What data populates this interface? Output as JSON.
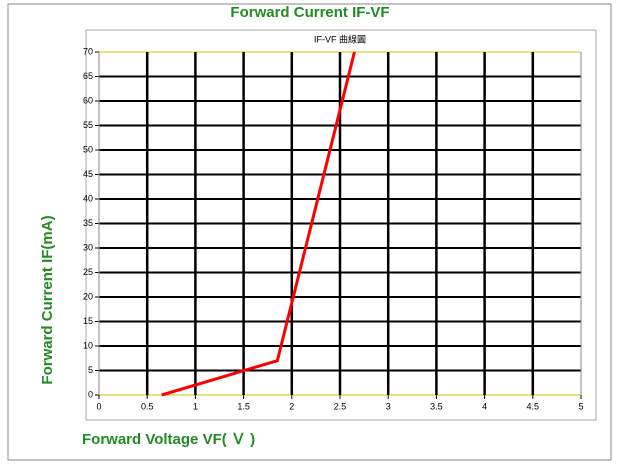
{
  "chart_data": {
    "type": "line",
    "title": "Forward  Current  IF-VF",
    "subtitle": "IF-VF 曲線圖",
    "x_label": "Forward Voltage VF( Ｖ )",
    "y_label": "Forward   Current  IF(mA)",
    "x": [
      0.65,
      1.85,
      2.65
    ],
    "series": [
      {
        "name": "IF-VF",
        "color": "#ff0000",
        "values": [
          0,
          7,
          70
        ]
      }
    ],
    "xlim": [
      0,
      5
    ],
    "xticks": [
      0,
      0.5,
      1,
      1.5,
      2,
      2.5,
      3,
      3.5,
      4,
      4.5,
      5
    ],
    "ylim": [
      0,
      70
    ],
    "yticks": [
      0,
      5,
      10,
      15,
      20,
      25,
      30,
      35,
      40,
      45,
      50,
      55,
      60,
      65,
      70
    ],
    "grid": true
  }
}
